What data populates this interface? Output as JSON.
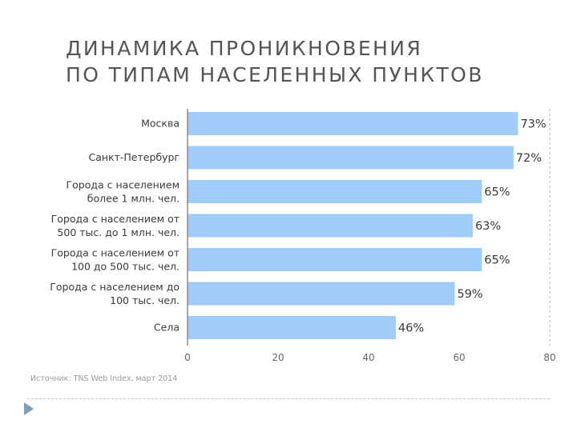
{
  "title_lines": [
    "ДИНАМИКА ПРОНИКНОВЕНИЯ",
    "ПО ТИПАМ НАСЕЛЕННЫХ ПУНКТОВ"
  ],
  "source": "Источник: TNS Web Index, март 2014",
  "colors": {
    "bar": "#9fccf9",
    "axis": "#8c8c8c",
    "grid": "#b5b5b5"
  },
  "chart_data": {
    "type": "bar",
    "orientation": "horizontal",
    "title": "ДИНАМИКА ПРОНИКНОВЕНИЯ ПО ТИПАМ НАСЕЛЕННЫХ ПУНКТОВ",
    "categories": [
      [
        "Москва"
      ],
      [
        "Санкт-Петербург"
      ],
      [
        "Города с населением",
        "более 1 млн. чел."
      ],
      [
        "Города с населением от",
        "500 тыс. до 1 млн. чел."
      ],
      [
        "Города с населением от",
        "100 до 500 тыс. чел."
      ],
      [
        "Города с населением до",
        "100 тыс. чел."
      ],
      [
        "Села"
      ]
    ],
    "values": [
      73,
      72,
      65,
      63,
      65,
      59,
      46
    ],
    "value_labels": [
      "73%",
      "72%",
      "65%",
      "63%",
      "65%",
      "59%",
      "46%"
    ],
    "xlim": [
      0,
      80
    ],
    "xticks": [
      0,
      20,
      40,
      60,
      80
    ],
    "xlabel": "",
    "ylabel": "",
    "grid": "vertical line at 80 only",
    "legend": "none"
  }
}
